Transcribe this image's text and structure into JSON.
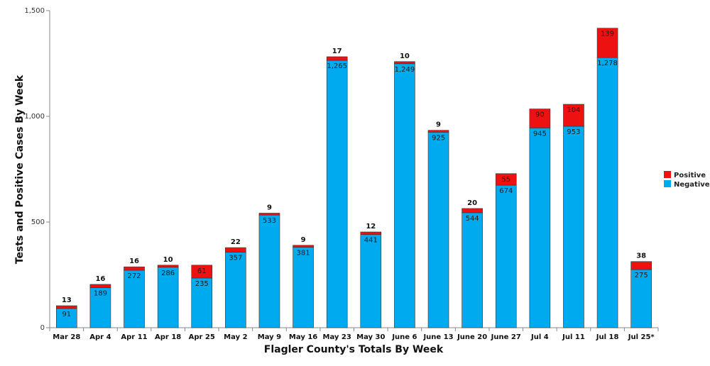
{
  "chart_data": {
    "type": "bar",
    "stacked": true,
    "title": "",
    "xlabel": "Flagler County's Totals By Week",
    "ylabel": "Tests and Positive Cases By Week",
    "ylim": [
      0,
      1500
    ],
    "yticks": [
      0,
      500,
      1000,
      1500
    ],
    "ytick_labels": [
      "0",
      "500",
      "1,000",
      "1,500"
    ],
    "grid": false,
    "legend_position": "right",
    "categories": [
      "Mar 28",
      "Apr 4",
      "Apr 11",
      "Apr 18",
      "Apr 25",
      "May 2",
      "May 9",
      "May 16",
      "May 23",
      "May 30",
      "June 6",
      "June 13",
      "June 20",
      "June 27",
      "Jul 4",
      "Jul 11",
      "Jul 18",
      "Jul 25*"
    ],
    "series": [
      {
        "name": "Negative",
        "color": "#00aaee",
        "values": [
          91,
          189,
          272,
          286,
          235,
          357,
          533,
          381,
          1265,
          441,
          1249,
          925,
          544,
          674,
          945,
          953,
          1278,
          275
        ],
        "labels": [
          "91",
          "189",
          "272",
          "286",
          "235",
          "357",
          "533",
          "381",
          "1,265",
          "441",
          "1,249",
          "925",
          "544",
          "674",
          "945",
          "953",
          "1,278",
          "275"
        ]
      },
      {
        "name": "Positive",
        "color": "#ee1111",
        "values": [
          13,
          16,
          16,
          10,
          61,
          22,
          9,
          9,
          17,
          12,
          10,
          9,
          20,
          55,
          90,
          104,
          139,
          38
        ],
        "labels": [
          "13",
          "16",
          "16",
          "10",
          "61",
          "22",
          "9",
          "9",
          "17",
          "12",
          "10",
          "9",
          "20",
          "55",
          "90",
          "104",
          "139",
          "38"
        ]
      }
    ],
    "legend": [
      "Positive",
      "Negative"
    ]
  }
}
